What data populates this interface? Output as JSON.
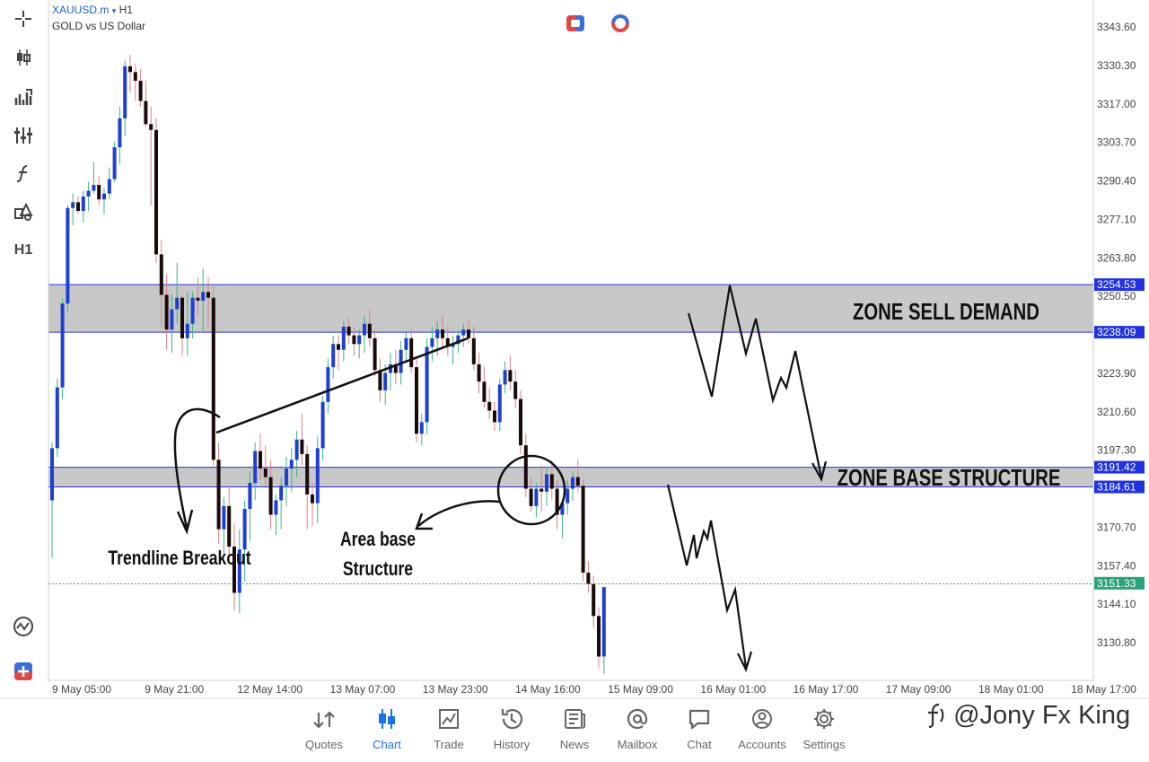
{
  "chart_header": {
    "symbol": "XAUUSD.m",
    "symbol_caret": "▾",
    "timeframe": "H1",
    "description": "GOLD vs US Dollar"
  },
  "sidebar": {
    "timeframe_label": "H1"
  },
  "chart_data": {
    "type": "candlestick",
    "timeframe": "H1",
    "ylim": [
      3118,
      3350
    ],
    "y_ticks": [
      3343.6,
      3330.3,
      3317.0,
      3303.7,
      3290.4,
      3277.1,
      3263.8,
      3250.5,
      3223.9,
      3210.6,
      3197.3,
      3170.7,
      3157.4,
      3144.1,
      3130.8
    ],
    "y_tick_labels": [
      "3343.60",
      "3330.30",
      "3317.00",
      "3303.70",
      "3290.40",
      "3277.10",
      "3263.80",
      "3250.50",
      "3223.90",
      "3210.60",
      "3197.30",
      "3170.70",
      "3157.40",
      "3144.10",
      "3130.80"
    ],
    "x_tick_labels": [
      "9 May 05:00",
      "9 May 21:00",
      "12 May 14:00",
      "13 May 07:00",
      "13 May 23:00",
      "14 May 16:00",
      "15 May 09:00",
      "16 May 01:00",
      "16 May 17:00",
      "17 May 09:00",
      "18 May 01:00",
      "18 May 17:00"
    ],
    "up_color": "#1f3fd1",
    "down_color": "#1a0a0a",
    "candles": [
      [
        3180,
        3200,
        3160,
        3198
      ],
      [
        3198,
        3222,
        3195,
        3219
      ],
      [
        3219,
        3250,
        3215,
        3248
      ],
      [
        3248,
        3282,
        3245,
        3281
      ],
      [
        3281,
        3286,
        3275,
        3283
      ],
      [
        3283,
        3285,
        3279,
        3280
      ],
      [
        3280,
        3287,
        3276,
        3285
      ],
      [
        3285,
        3290,
        3280,
        3287
      ],
      [
        3287,
        3297,
        3286,
        3289
      ],
      [
        3289,
        3292,
        3282,
        3284
      ],
      [
        3284,
        3288,
        3279,
        3286
      ],
      [
        3286,
        3295,
        3284,
        3291
      ],
      [
        3291,
        3304,
        3290,
        3302
      ],
      [
        3302,
        3316,
        3296,
        3312
      ],
      [
        3312,
        3332,
        3306,
        3330
      ],
      [
        3330,
        3334,
        3321,
        3328
      ],
      [
        3328,
        3331,
        3318,
        3325
      ],
      [
        3325,
        3329,
        3316,
        3318
      ],
      [
        3318,
        3325,
        3309,
        3310
      ],
      [
        3310,
        3316,
        3282,
        3308
      ],
      [
        3308,
        3312,
        3262,
        3265
      ],
      [
        3265,
        3270,
        3240,
        3251
      ],
      [
        3251,
        3258,
        3232,
        3239
      ],
      [
        3239,
        3251,
        3231,
        3246
      ],
      [
        3246,
        3262,
        3241,
        3250
      ],
      [
        3250,
        3251,
        3230,
        3236
      ],
      [
        3236,
        3252,
        3230,
        3241
      ],
      [
        3241,
        3252,
        3236,
        3250
      ],
      [
        3250,
        3257,
        3244,
        3249
      ],
      [
        3249,
        3260,
        3238,
        3252
      ],
      [
        3252,
        3257,
        3240,
        3250
      ],
      [
        3250,
        3254,
        3192,
        3194
      ],
      [
        3194,
        3200,
        3165,
        3170
      ],
      [
        3170,
        3181,
        3160,
        3178
      ],
      [
        3178,
        3185,
        3161,
        3164
      ],
      [
        3164,
        3172,
        3142,
        3148
      ],
      [
        3148,
        3170,
        3141,
        3163
      ],
      [
        3163,
        3180,
        3152,
        3177
      ],
      [
        3177,
        3190,
        3166,
        3186
      ],
      [
        3186,
        3200,
        3180,
        3197
      ],
      [
        3197,
        3203,
        3187,
        3191
      ],
      [
        3191,
        3199,
        3185,
        3188
      ],
      [
        3188,
        3194,
        3170,
        3175
      ],
      [
        3175,
        3182,
        3168,
        3180
      ],
      [
        3180,
        3188,
        3170,
        3185
      ],
      [
        3185,
        3195,
        3178,
        3191
      ],
      [
        3191,
        3198,
        3183,
        3194
      ],
      [
        3194,
        3204,
        3188,
        3201
      ],
      [
        3201,
        3210,
        3192,
        3196
      ],
      [
        3196,
        3199,
        3170,
        3182
      ],
      [
        3182,
        3186,
        3171,
        3179
      ],
      [
        3179,
        3202,
        3172,
        3198
      ],
      [
        3198,
        3216,
        3194,
        3214
      ],
      [
        3214,
        3229,
        3210,
        3226
      ],
      [
        3226,
        3237,
        3222,
        3234
      ],
      [
        3234,
        3237,
        3225,
        3232
      ],
      [
        3232,
        3242,
        3228,
        3240
      ],
      [
        3240,
        3243,
        3234,
        3237
      ],
      [
        3237,
        3240,
        3230,
        3234
      ],
      [
        3234,
        3239,
        3229,
        3237
      ],
      [
        3237,
        3244,
        3231,
        3241
      ],
      [
        3241,
        3246,
        3233,
        3236
      ],
      [
        3236,
        3239,
        3223,
        3225
      ],
      [
        3225,
        3229,
        3214,
        3218
      ],
      [
        3218,
        3227,
        3213,
        3224
      ],
      [
        3224,
        3231,
        3218,
        3227
      ],
      [
        3227,
        3232,
        3220,
        3224
      ],
      [
        3224,
        3235,
        3220,
        3232
      ],
      [
        3232,
        3238,
        3228,
        3236
      ],
      [
        3236,
        3239,
        3224,
        3226
      ],
      [
        3226,
        3229,
        3200,
        3203
      ],
      [
        3203,
        3210,
        3199,
        3207
      ],
      [
        3207,
        3236,
        3203,
        3233
      ],
      [
        3233,
        3240,
        3228,
        3236
      ],
      [
        3236,
        3242,
        3230,
        3239
      ],
      [
        3239,
        3244,
        3233,
        3236
      ],
      [
        3236,
        3240,
        3230,
        3233
      ],
      [
        3233,
        3237,
        3227,
        3234
      ],
      [
        3234,
        3239,
        3231,
        3237
      ],
      [
        3237,
        3241,
        3233,
        3239
      ],
      [
        3239,
        3242,
        3234,
        3236
      ],
      [
        3236,
        3240,
        3225,
        3227
      ],
      [
        3227,
        3231,
        3217,
        3221
      ],
      [
        3221,
        3226,
        3212,
        3214
      ],
      [
        3214,
        3219,
        3208,
        3211
      ],
      [
        3211,
        3214,
        3204,
        3207
      ],
      [
        3207,
        3222,
        3204,
        3220
      ],
      [
        3220,
        3228,
        3217,
        3225
      ],
      [
        3225,
        3230,
        3218,
        3221
      ],
      [
        3221,
        3225,
        3212,
        3215
      ],
      [
        3215,
        3218,
        3196,
        3199
      ],
      [
        3199,
        3203,
        3181,
        3184
      ],
      [
        3184,
        3188,
        3176,
        3178
      ],
      [
        3178,
        3186,
        3174,
        3184
      ],
      [
        3184,
        3192,
        3176,
        3183
      ],
      [
        3183,
        3191,
        3178,
        3189
      ],
      [
        3189,
        3194,
        3180,
        3184
      ],
      [
        3184,
        3187,
        3170,
        3175
      ],
      [
        3175,
        3180,
        3167,
        3179
      ],
      [
        3179,
        3187,
        3175,
        3184
      ],
      [
        3184,
        3190,
        3180,
        3188
      ],
      [
        3188,
        3194,
        3183,
        3185
      ],
      [
        3185,
        3187,
        3152,
        3155
      ],
      [
        3155,
        3159,
        3148,
        3151
      ],
      [
        3151,
        3154,
        3136,
        3140
      ],
      [
        3140,
        3143,
        3122,
        3126
      ],
      [
        3126,
        3150,
        3120,
        3150
      ]
    ],
    "zones": [
      {
        "label": "ZONE SELL DEMAND",
        "top": 3254.53,
        "bottom": 3238.09,
        "top_label": "3254.53",
        "bottom_label": "3238.09"
      },
      {
        "label": "ZONE BASE STRUCTURE",
        "top": 3191.42,
        "bottom": 3184.61,
        "top_label": "3191.42",
        "bottom_label": "3184.61"
      }
    ],
    "current_price": 3151.33,
    "current_price_label": "3151.33",
    "annotations": {
      "trendline_breakout": "Trendline Breakout",
      "area_base_line1": "Area base",
      "area_base_line2": "Structure"
    }
  },
  "bottom_nav": {
    "items": [
      {
        "label": "Quotes",
        "icon": "quotes-icon"
      },
      {
        "label": "Chart",
        "icon": "chart-icon"
      },
      {
        "label": "Trade",
        "icon": "trade-icon"
      },
      {
        "label": "History",
        "icon": "history-icon"
      },
      {
        "label": "News",
        "icon": "news-icon"
      },
      {
        "label": "Mailbox",
        "icon": "mailbox-icon"
      },
      {
        "label": "Chat",
        "icon": "chat-icon"
      },
      {
        "label": "Accounts",
        "icon": "accounts-icon"
      },
      {
        "label": "Settings",
        "icon": "settings-icon"
      }
    ],
    "active": "Chart",
    "active_color": "#1a73e8"
  },
  "watermark": "@Jony Fx King"
}
